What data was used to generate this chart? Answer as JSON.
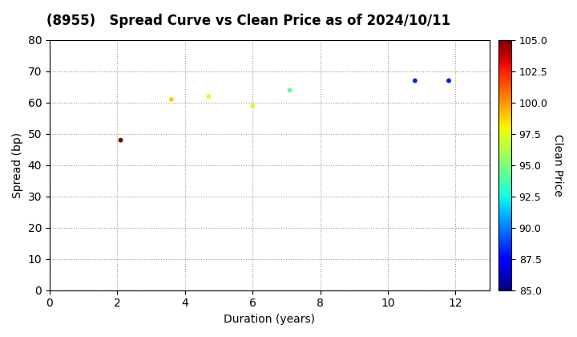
{
  "title": "(8955)   Spread Curve vs Clean Price as of 2024/10/11",
  "xlabel": "Duration (years)",
  "ylabel": "Spread (bp)",
  "colorbar_label": "Clean Price",
  "points": [
    {
      "duration": 2.1,
      "spread": 48,
      "price": 105.0
    },
    {
      "duration": 3.6,
      "spread": 61,
      "price": 98.8
    },
    {
      "duration": 4.7,
      "spread": 62,
      "price": 97.8
    },
    {
      "duration": 6.0,
      "spread": 59,
      "price": 96.8
    },
    {
      "duration": 7.1,
      "spread": 64,
      "price": 94.2
    },
    {
      "duration": 10.8,
      "spread": 67,
      "price": 88.2
    },
    {
      "duration": 11.8,
      "spread": 67,
      "price": 88.0
    }
  ],
  "xlim": [
    0,
    13
  ],
  "ylim": [
    0,
    80
  ],
  "xticks": [
    0,
    2,
    4,
    6,
    8,
    10,
    12
  ],
  "yticks": [
    0,
    10,
    20,
    30,
    40,
    50,
    60,
    70,
    80
  ],
  "price_vmin": 85.0,
  "price_vmax": 105.0,
  "colorbar_ticks": [
    85.0,
    87.5,
    90.0,
    92.5,
    95.0,
    97.5,
    100.0,
    102.5,
    105.0
  ],
  "marker_size": 18,
  "background_color": "#ffffff",
  "grid_color": "#999999",
  "grid_style": "dotted",
  "title_fontsize": 12,
  "axis_fontsize": 10
}
